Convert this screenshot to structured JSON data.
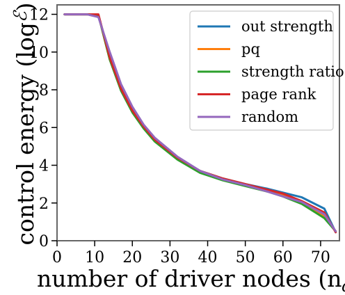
{
  "chart_data": {
    "type": "line",
    "title": "",
    "xlabel": "number of driver nodes (n",
    "xlabel_sub": "d",
    "xlabel_close": ")",
    "ylabel": "control energy (log",
    "ylabel_sym": "ℰ",
    "ylabel_close": ")",
    "xlim": [
      0,
      75
    ],
    "ylim": [
      0,
      12.5
    ],
    "xticks": [
      0,
      10,
      20,
      30,
      40,
      50,
      60,
      70
    ],
    "yticks": [
      0,
      2,
      4,
      6,
      8,
      10,
      12
    ],
    "xtick_labels": [
      "0",
      "10",
      "20",
      "30",
      "40",
      "50",
      "60",
      "70"
    ],
    "ytick_labels": [
      "0",
      "2",
      "4",
      "6",
      "8",
      "10",
      "12"
    ],
    "grid": false,
    "legend_position": "top-right",
    "series": [
      {
        "name": "out strength",
        "color": "#1f77b4",
        "points": [
          [
            2,
            12.0
          ],
          [
            8,
            12.0
          ],
          [
            11,
            11.95
          ],
          [
            14,
            9.8
          ],
          [
            17,
            8.2
          ],
          [
            20,
            7.0
          ],
          [
            23,
            6.1
          ],
          [
            26,
            5.4
          ],
          [
            32,
            4.4
          ],
          [
            38,
            3.7
          ],
          [
            44,
            3.3
          ],
          [
            50,
            3.0
          ],
          [
            56,
            2.75
          ],
          [
            60,
            2.55
          ],
          [
            65,
            2.3
          ],
          [
            71,
            1.7
          ],
          [
            74,
            0.45
          ]
        ]
      },
      {
        "name": "pq",
        "color": "#ff7f0e",
        "points": [
          [
            2,
            12.0
          ],
          [
            8,
            12.0
          ],
          [
            11,
            11.95
          ],
          [
            14,
            9.6
          ],
          [
            17,
            8.0
          ],
          [
            20,
            6.85
          ],
          [
            23,
            6.0
          ],
          [
            26,
            5.3
          ],
          [
            32,
            4.35
          ],
          [
            38,
            3.65
          ],
          [
            44,
            3.25
          ],
          [
            50,
            2.95
          ],
          [
            56,
            2.65
          ],
          [
            60,
            2.4
          ],
          [
            65,
            2.0
          ],
          [
            71,
            1.3
          ],
          [
            74,
            0.5
          ]
        ]
      },
      {
        "name": "strength ratio",
        "color": "#2ca02c",
        "points": [
          [
            2,
            12.0
          ],
          [
            8,
            12.0
          ],
          [
            11,
            11.95
          ],
          [
            14,
            9.6
          ],
          [
            17,
            7.95
          ],
          [
            20,
            6.8
          ],
          [
            23,
            5.95
          ],
          [
            26,
            5.25
          ],
          [
            32,
            4.3
          ],
          [
            38,
            3.6
          ],
          [
            44,
            3.2
          ],
          [
            50,
            2.9
          ],
          [
            56,
            2.6
          ],
          [
            60,
            2.35
          ],
          [
            65,
            1.95
          ],
          [
            71,
            1.2
          ],
          [
            74,
            0.5
          ]
        ]
      },
      {
        "name": "page rank",
        "color": "#d62728",
        "points": [
          [
            2,
            12.0
          ],
          [
            8,
            12.0
          ],
          [
            11,
            12.0
          ],
          [
            14,
            9.7
          ],
          [
            17,
            8.05
          ],
          [
            20,
            6.9
          ],
          [
            23,
            6.05
          ],
          [
            26,
            5.35
          ],
          [
            32,
            4.4
          ],
          [
            38,
            3.7
          ],
          [
            44,
            3.3
          ],
          [
            50,
            3.0
          ],
          [
            56,
            2.7
          ],
          [
            60,
            2.5
          ],
          [
            65,
            2.1
          ],
          [
            71,
            1.5
          ],
          [
            74,
            0.45
          ]
        ]
      },
      {
        "name": "random",
        "color": "#9467bd",
        "points": [
          [
            2,
            12.0
          ],
          [
            8,
            12.0
          ],
          [
            11,
            11.85
          ],
          [
            14,
            10.0
          ],
          [
            17,
            8.3
          ],
          [
            20,
            7.1
          ],
          [
            23,
            6.15
          ],
          [
            26,
            5.45
          ],
          [
            32,
            4.45
          ],
          [
            38,
            3.7
          ],
          [
            44,
            3.25
          ],
          [
            50,
            2.95
          ],
          [
            56,
            2.6
          ],
          [
            60,
            2.35
          ],
          [
            65,
            2.05
          ],
          [
            71,
            1.4
          ],
          [
            74,
            0.5
          ]
        ]
      }
    ]
  }
}
